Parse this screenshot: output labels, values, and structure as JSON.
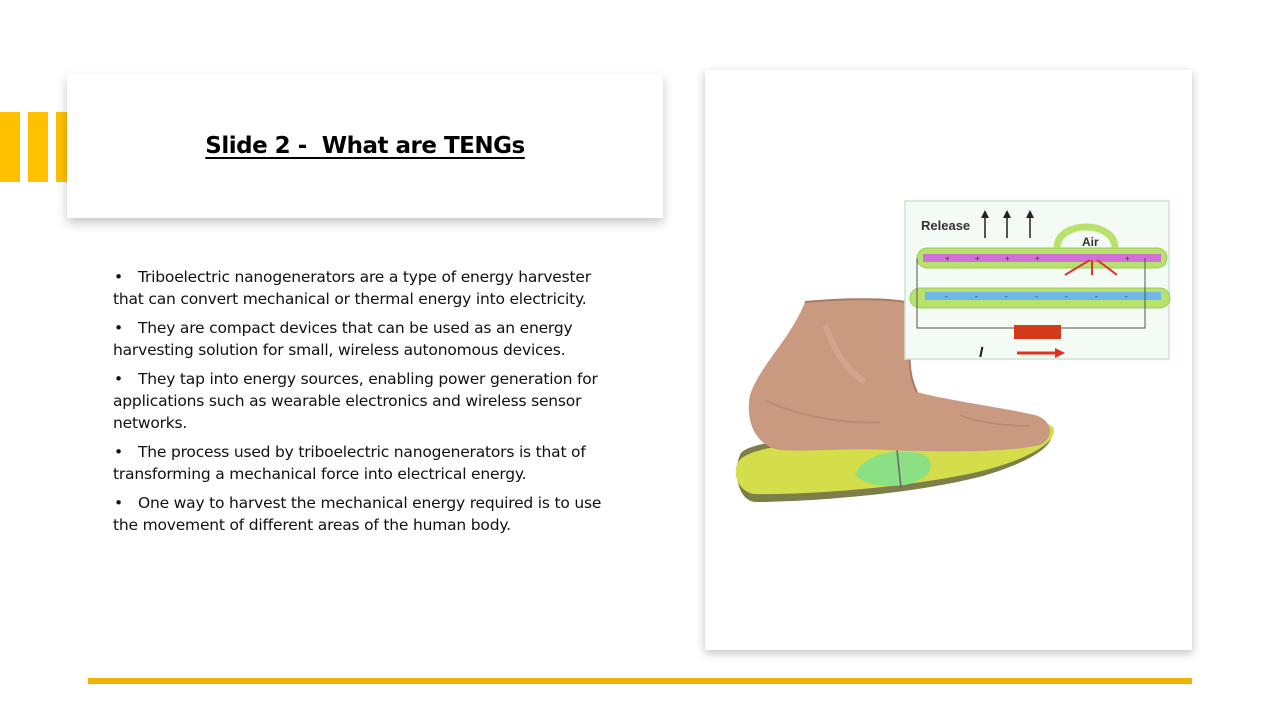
{
  "slide": {
    "title": "Slide 2 -  What are TENGs",
    "bullets": [
      "Triboelectric nanogenerators are a type of energy harvester that can convert mechanical or thermal energy into electricity.",
      "They are compact devices that can be used as an energy harvesting solution for small, wireless autonomous devices.",
      "They tap into energy sources, enabling power generation for applications such as wearable electronics and wireless sensor networks.",
      "The process used by triboelectric nanogenerators is that of transforming a mechanical force into electrical energy.",
      "One way to harvest the mechanical energy required is to use the movement of different areas of the human body."
    ],
    "bullet_symbol": "•"
  },
  "diagram": {
    "release_label": "Release",
    "air_label": "Air",
    "current_label": "I",
    "plus_sign": "+",
    "minus_sign": "-"
  },
  "colors": {
    "accent": "#FFC000",
    "bottom_line": "#F0B400",
    "insole": "#D4DD4A",
    "outline_green": "#B7E26C",
    "magenta_layer": "#D070D8",
    "blue_layer": "#6FB7E6",
    "resistor": "#D23A1A",
    "skin": "#C99A80"
  }
}
